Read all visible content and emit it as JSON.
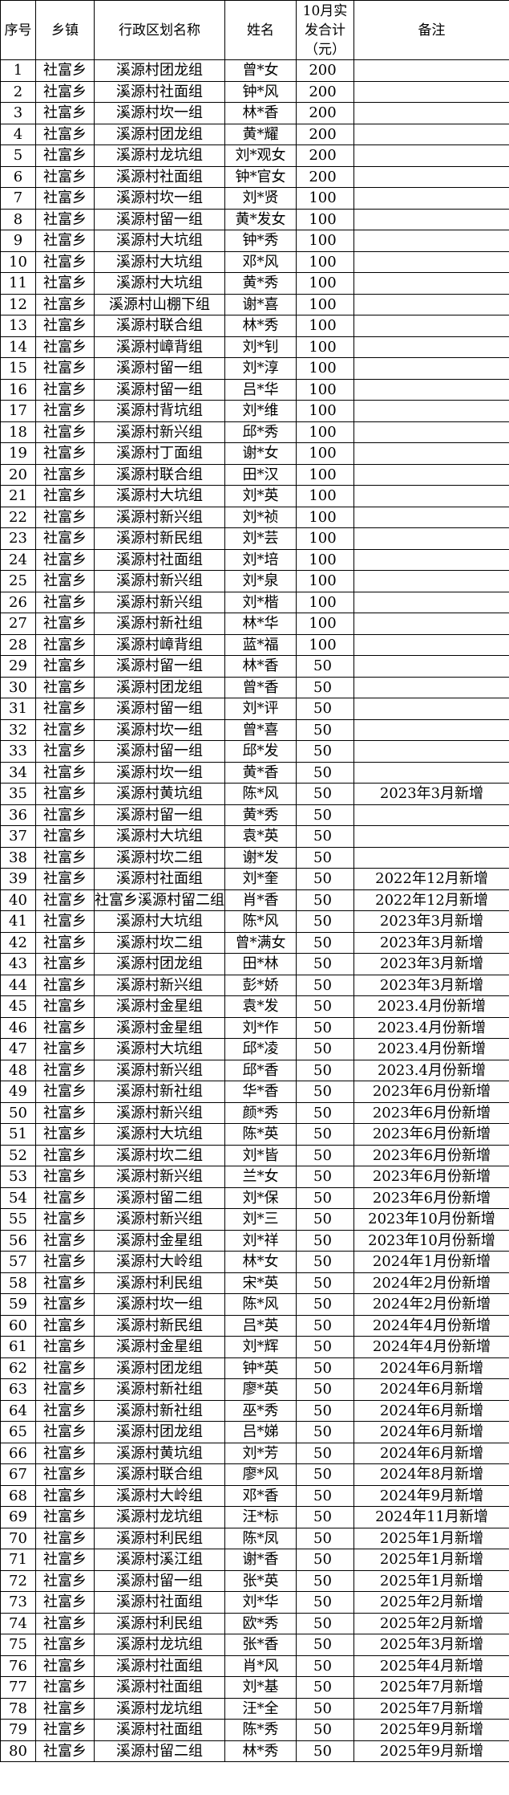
{
  "headers": [
    "序号",
    "乡镇",
    "行政区划名称",
    "姓名",
    "10月实发合计（元）",
    "备注"
  ],
  "rows": [
    [
      "1",
      "社富乡",
      "溪源村团龙组",
      "曾*女",
      "200",
      ""
    ],
    [
      "2",
      "社富乡",
      "溪源村社面组",
      "钟*风",
      "200",
      ""
    ],
    [
      "3",
      "社富乡",
      "溪源村坎一组",
      "林*香",
      "200",
      ""
    ],
    [
      "4",
      "社富乡",
      "溪源村团龙组",
      "黄*耀",
      "200",
      ""
    ],
    [
      "5",
      "社富乡",
      "溪源村龙坑组",
      "刘*观女",
      "200",
      ""
    ],
    [
      "6",
      "社富乡",
      "溪源村社面组",
      "钟*官女",
      "200",
      ""
    ],
    [
      "7",
      "社富乡",
      "溪源村坎一组",
      "刘*贤",
      "100",
      ""
    ],
    [
      "8",
      "社富乡",
      "溪源村留一组",
      "黄*发女",
      "100",
      ""
    ],
    [
      "9",
      "社富乡",
      "溪源村大坑组",
      "钟*秀",
      "100",
      ""
    ],
    [
      "10",
      "社富乡",
      "溪源村大坑组",
      "邓*风",
      "100",
      ""
    ],
    [
      "11",
      "社富乡",
      "溪源村大坑组",
      "黄*秀",
      "100",
      ""
    ],
    [
      "12",
      "社富乡",
      "溪源村山棚下组",
      "谢*喜",
      "100",
      ""
    ],
    [
      "13",
      "社富乡",
      "溪源村联合组",
      "林*秀",
      "100",
      ""
    ],
    [
      "14",
      "社富乡",
      "溪源村嶂背组",
      "刘*钊",
      "100",
      ""
    ],
    [
      "15",
      "社富乡",
      "溪源村留一组",
      "刘*淳",
      "100",
      ""
    ],
    [
      "16",
      "社富乡",
      "溪源村留一组",
      "吕*华",
      "100",
      ""
    ],
    [
      "17",
      "社富乡",
      "溪源村背坑组",
      "刘*维",
      "100",
      ""
    ],
    [
      "18",
      "社富乡",
      "溪源村新兴组",
      "邱*秀",
      "100",
      ""
    ],
    [
      "19",
      "社富乡",
      "溪源村丁面组",
      "谢*女",
      "100",
      ""
    ],
    [
      "20",
      "社富乡",
      "溪源村联合组",
      "田*汉",
      "100",
      ""
    ],
    [
      "21",
      "社富乡",
      "溪源村大坑组",
      "刘*英",
      "100",
      ""
    ],
    [
      "22",
      "社富乡",
      "溪源村新兴组",
      "刘*祯",
      "100",
      ""
    ],
    [
      "23",
      "社富乡",
      "溪源村新民组",
      "刘*芸",
      "100",
      ""
    ],
    [
      "24",
      "社富乡",
      "溪源村社面组",
      "刘*培",
      "100",
      ""
    ],
    [
      "25",
      "社富乡",
      "溪源村新兴组",
      "刘*泉",
      "100",
      ""
    ],
    [
      "26",
      "社富乡",
      "溪源村新兴组",
      "刘*楷",
      "100",
      ""
    ],
    [
      "27",
      "社富乡",
      "溪源村新社组",
      "林*华",
      "100",
      ""
    ],
    [
      "28",
      "社富乡",
      "溪源村嶂背组",
      "蓝*福",
      "100",
      ""
    ],
    [
      "29",
      "社富乡",
      "溪源村留一组",
      "林*香",
      "50",
      ""
    ],
    [
      "30",
      "社富乡",
      "溪源村团龙组",
      "曾*香",
      "50",
      ""
    ],
    [
      "31",
      "社富乡",
      "溪源村留一组",
      "刘*评",
      "50",
      ""
    ],
    [
      "32",
      "社富乡",
      "溪源村坎一组",
      "曾*喜",
      "50",
      ""
    ],
    [
      "33",
      "社富乡",
      "溪源村留一组",
      "邱*发",
      "50",
      ""
    ],
    [
      "34",
      "社富乡",
      "溪源村坎一组",
      "黄*香",
      "50",
      ""
    ],
    [
      "35",
      "社富乡",
      "溪源村黄坑组",
      "陈*风",
      "50",
      "2023年3月新增"
    ],
    [
      "36",
      "社富乡",
      "溪源村留一组",
      "黄*秀",
      "50",
      ""
    ],
    [
      "37",
      "社富乡",
      "溪源村大坑组",
      "袁*英",
      "50",
      ""
    ],
    [
      "38",
      "社富乡",
      "溪源村坎二组",
      "谢*发",
      "50",
      ""
    ],
    [
      "39",
      "社富乡",
      "溪源村社面组",
      "刘*奎",
      "50",
      "2022年12月新增"
    ],
    [
      "40",
      "社富乡",
      "社富乡溪源村留二组",
      "肖*香",
      "50",
      "2022年12月新增"
    ],
    [
      "41",
      "社富乡",
      "溪源村大坑组",
      "陈*风",
      "50",
      "2023年3月新增"
    ],
    [
      "42",
      "社富乡",
      "溪源村坎二组",
      "曾*满女",
      "50",
      "2023年3月新增"
    ],
    [
      "43",
      "社富乡",
      "溪源村团龙组",
      "田*林",
      "50",
      "2023年3月新增"
    ],
    [
      "44",
      "社富乡",
      "溪源村新兴组",
      "彭*娇",
      "50",
      "2023年3月新增"
    ],
    [
      "45",
      "社富乡",
      "溪源村金星组",
      "袁*发",
      "50",
      "2023.4月份新增"
    ],
    [
      "46",
      "社富乡",
      "溪源村金星组",
      "刘*作",
      "50",
      "2023.4月份新增"
    ],
    [
      "47",
      "社富乡",
      "溪源村大坑组",
      "邱*凌",
      "50",
      "2023.4月份新增"
    ],
    [
      "48",
      "社富乡",
      "溪源村新兴组",
      "邱*香",
      "50",
      "2023.4月份新增"
    ],
    [
      "49",
      "社富乡",
      "溪源村新社组",
      "华*香",
      "50",
      "2023年6月份新增"
    ],
    [
      "50",
      "社富乡",
      "溪源村新兴组",
      "颜*秀",
      "50",
      "2023年6月份新增"
    ],
    [
      "51",
      "社富乡",
      "溪源村大坑组",
      "陈*英",
      "50",
      "2023年6月份新增"
    ],
    [
      "52",
      "社富乡",
      "溪源村坎二组",
      "刘*皆",
      "50",
      "2023年6月份新增"
    ],
    [
      "53",
      "社富乡",
      "溪源村新兴组",
      "兰*女",
      "50",
      "2023年6月份新增"
    ],
    [
      "54",
      "社富乡",
      "溪源村留二组",
      "刘*保",
      "50",
      "2023年6月份新增"
    ],
    [
      "55",
      "社富乡",
      "溪源村新兴组",
      "刘*三",
      "50",
      "2023年10月份新增"
    ],
    [
      "56",
      "社富乡",
      "溪源村金星组",
      "刘*祥",
      "50",
      "2023年10月份新增"
    ],
    [
      "57",
      "社富乡",
      "溪源村大岭组",
      "林*女",
      "50",
      "2024年1月份新增"
    ],
    [
      "58",
      "社富乡",
      "溪源村利民组",
      "宋*英",
      "50",
      "2024年2月份新增"
    ],
    [
      "59",
      "社富乡",
      "溪源村坎一组",
      "陈*风",
      "50",
      "2024年2月份新增"
    ],
    [
      "60",
      "社富乡",
      "溪源村新民组",
      "吕*英",
      "50",
      "2024年4月份新增"
    ],
    [
      "61",
      "社富乡",
      "溪源村金星组",
      "刘*辉",
      "50",
      "2024年4月份新增"
    ],
    [
      "62",
      "社富乡",
      "溪源村团龙组",
      "钟*英",
      "50",
      "2024年6月新增"
    ],
    [
      "63",
      "社富乡",
      "溪源村新社组",
      "廖*英",
      "50",
      "2024年6月新增"
    ],
    [
      "64",
      "社富乡",
      "溪源村新社组",
      "巫*秀",
      "50",
      "2024年6月新增"
    ],
    [
      "65",
      "社富乡",
      "溪源村团龙组",
      "吕*娣",
      "50",
      "2024年6月新增"
    ],
    [
      "66",
      "社富乡",
      "溪源村黄坑组",
      "刘*芳",
      "50",
      "2024年6月新增"
    ],
    [
      "67",
      "社富乡",
      "溪源村联合组",
      "廖*风",
      "50",
      "2024年8月新增"
    ],
    [
      "68",
      "社富乡",
      "溪源村大岭组",
      "邓*香",
      "50",
      "2024年9月新增"
    ],
    [
      "69",
      "社富乡",
      "溪源村龙坑组",
      "汪*标",
      "50",
      "2024年11月新增"
    ],
    [
      "70",
      "社富乡",
      "溪源村利民组",
      "陈*凤",
      "50",
      "2025年1月新增"
    ],
    [
      "71",
      "社富乡",
      "溪源村溪江组",
      "谢*香",
      "50",
      "2025年1月新增"
    ],
    [
      "72",
      "社富乡",
      "溪源村留一组",
      "张*英",
      "50",
      "2025年1月新增"
    ],
    [
      "73",
      "社富乡",
      "溪源村社面组",
      "刘*华",
      "50",
      "2025年2月新增"
    ],
    [
      "74",
      "社富乡",
      "溪源村利民组",
      "欧*秀",
      "50",
      "2025年2月新增"
    ],
    [
      "75",
      "社富乡",
      "溪源村龙坑组",
      "张*香",
      "50",
      "2025年3月新增"
    ],
    [
      "76",
      "社富乡",
      "溪源村社面组",
      "肖*风",
      "50",
      "2025年4月新增"
    ],
    [
      "77",
      "社富乡",
      "溪源村社面组",
      "刘*基",
      "50",
      "2025年7月新增"
    ],
    [
      "78",
      "社富乡",
      "溪源村龙坑组",
      "汪*全",
      "50",
      "2025年7月新增"
    ],
    [
      "79",
      "社富乡",
      "溪源村社面组",
      "陈*秀",
      "50",
      "2025年9月新增"
    ],
    [
      "80",
      "社富乡",
      "溪源村留二组",
      "林*秀",
      "50",
      "2025年9月新增"
    ]
  ]
}
